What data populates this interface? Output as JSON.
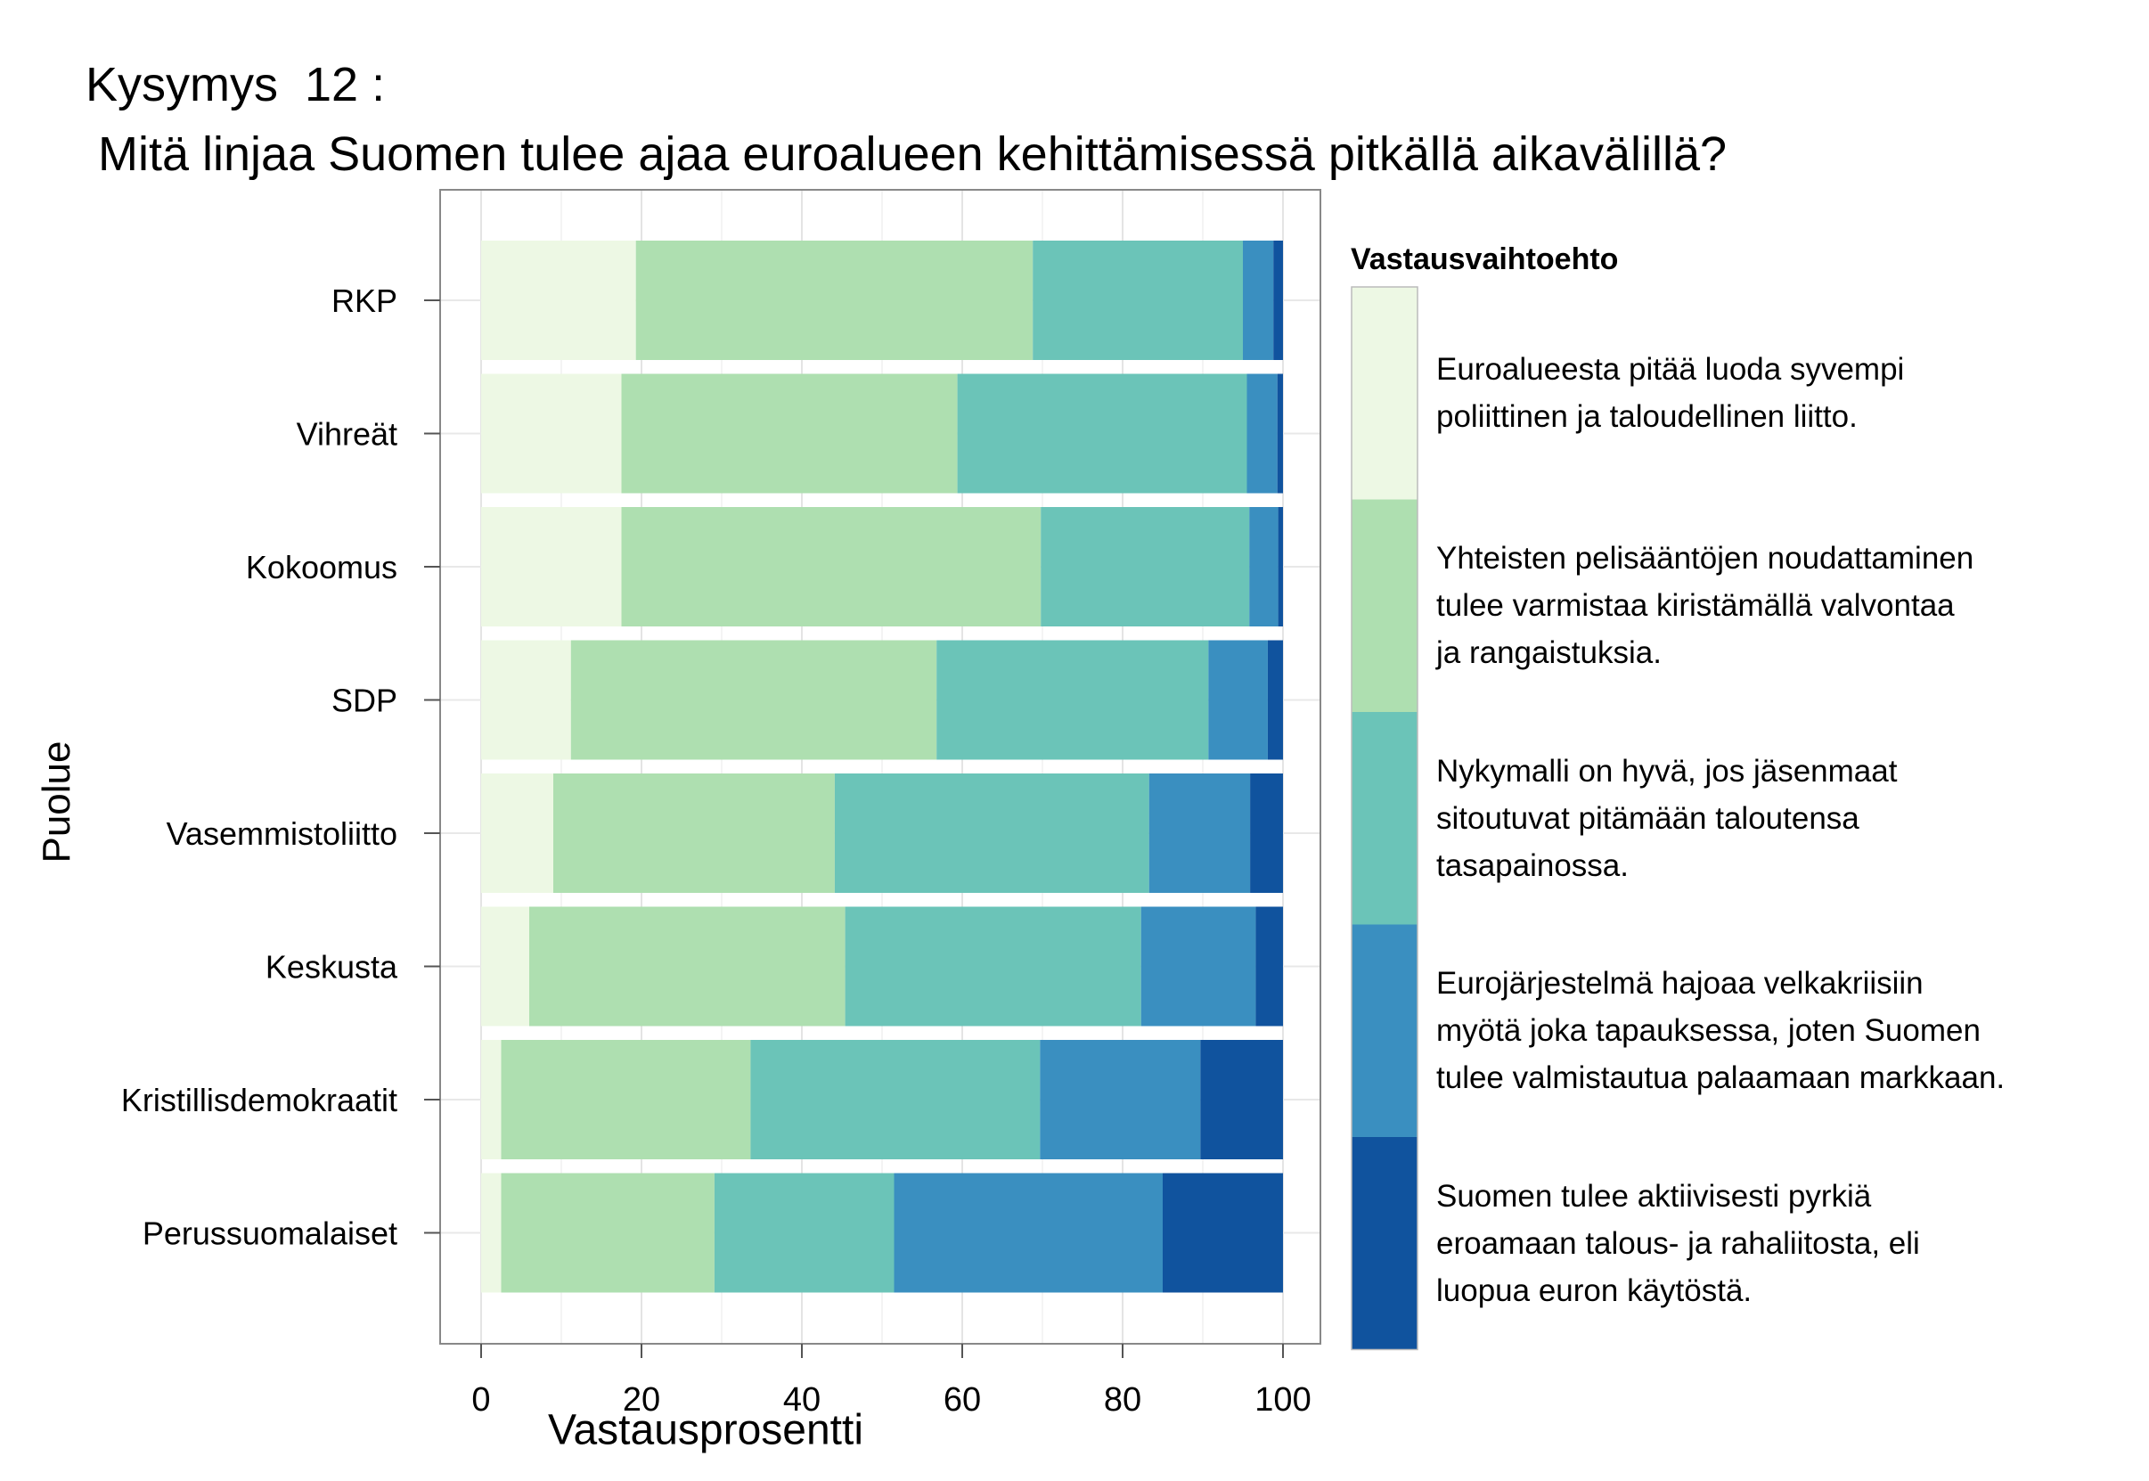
{
  "title": {
    "line1": "Kysymys  12 :",
    "line2": "Mitä linjaa Suomen tulee ajaa euroalueen kehittämisessä pitkällä aikavälillä?"
  },
  "chart_data": {
    "type": "bar",
    "orientation": "horizontal",
    "stacked": true,
    "xlabel": "Vastausprosentti",
    "ylabel": "Puolue",
    "xlim": [
      0,
      100
    ],
    "xticks": [
      0,
      20,
      40,
      60,
      80,
      100
    ],
    "grid": true,
    "legend_position": "right",
    "legend_title": "Vastausvaihtoehto",
    "categories": [
      "RKP",
      "Vihreät",
      "Kokoomus",
      "SDP",
      "Vasemmistoliitto",
      "Keskusta",
      "Kristillisdemokraatit",
      "Perussuomalaiset"
    ],
    "series": [
      {
        "name": "Euroalueesta pitää luoda syvempi poliittinen ja taloudellinen liitto.",
        "lines": [
          "Euroalueesta pitää luoda syvempi",
          "poliittinen ja taloudellinen liitto."
        ],
        "color": "#edf8e4",
        "values": [
          19.3,
          17.5,
          17.5,
          11.2,
          9.0,
          6.0,
          2.5,
          2.5
        ]
      },
      {
        "name": "Yhteisten pelisääntöjen noudattaminen tulee varmistaa kiristämällä valvontaa ja rangaistuksia.",
        "lines": [
          "Yhteisten pelisääntöjen noudattaminen",
          "tulee varmistaa kiristämällä valvontaa",
          "ja rangaistuksia."
        ],
        "color": "#aedfb0",
        "values": [
          49.5,
          41.9,
          52.3,
          45.6,
          35.1,
          39.4,
          31.1,
          26.6
        ]
      },
      {
        "name": "Nykymalli on hyvä, jos jäsenmaat sitoutuvat pitämään taloutensa tasapainossa.",
        "lines": [
          "Nykymalli on hyvä, jos jäsenmaat",
          "sitoutuvat pitämään taloutensa",
          "tasapainossa."
        ],
        "color": "#6bc4b8",
        "values": [
          26.2,
          36.1,
          26.0,
          33.9,
          39.2,
          36.9,
          36.1,
          22.4
        ]
      },
      {
        "name": "Eurojärjestelmä hajoaa velkakriisiin myötä joka tapauksessa, joten Suomen tulee valmistautua palaamaan markkaan.",
        "lines": [
          "Eurojärjestelmä hajoaa velkakriisiin",
          "myötä joka tapauksessa, joten Suomen",
          "tulee valmistautua palaamaan markkaan."
        ],
        "color": "#3a8fc0",
        "values": [
          3.8,
          3.8,
          3.6,
          7.4,
          12.6,
          14.3,
          20.0,
          33.5
        ]
      },
      {
        "name": "Suomen tulee aktiivisesti pyrkiä eroamaan talous- ja rahaliitosta, eli luopua euron käytöstä.",
        "lines": [
          "Suomen tulee aktiivisesti pyrkiä",
          "eroamaan talous- ja rahaliitosta, eli",
          "luopua euron käytöstä."
        ],
        "color": "#10539e",
        "values": [
          1.2,
          0.7,
          0.6,
          1.9,
          4.1,
          3.4,
          10.3,
          15.0
        ]
      }
    ]
  }
}
